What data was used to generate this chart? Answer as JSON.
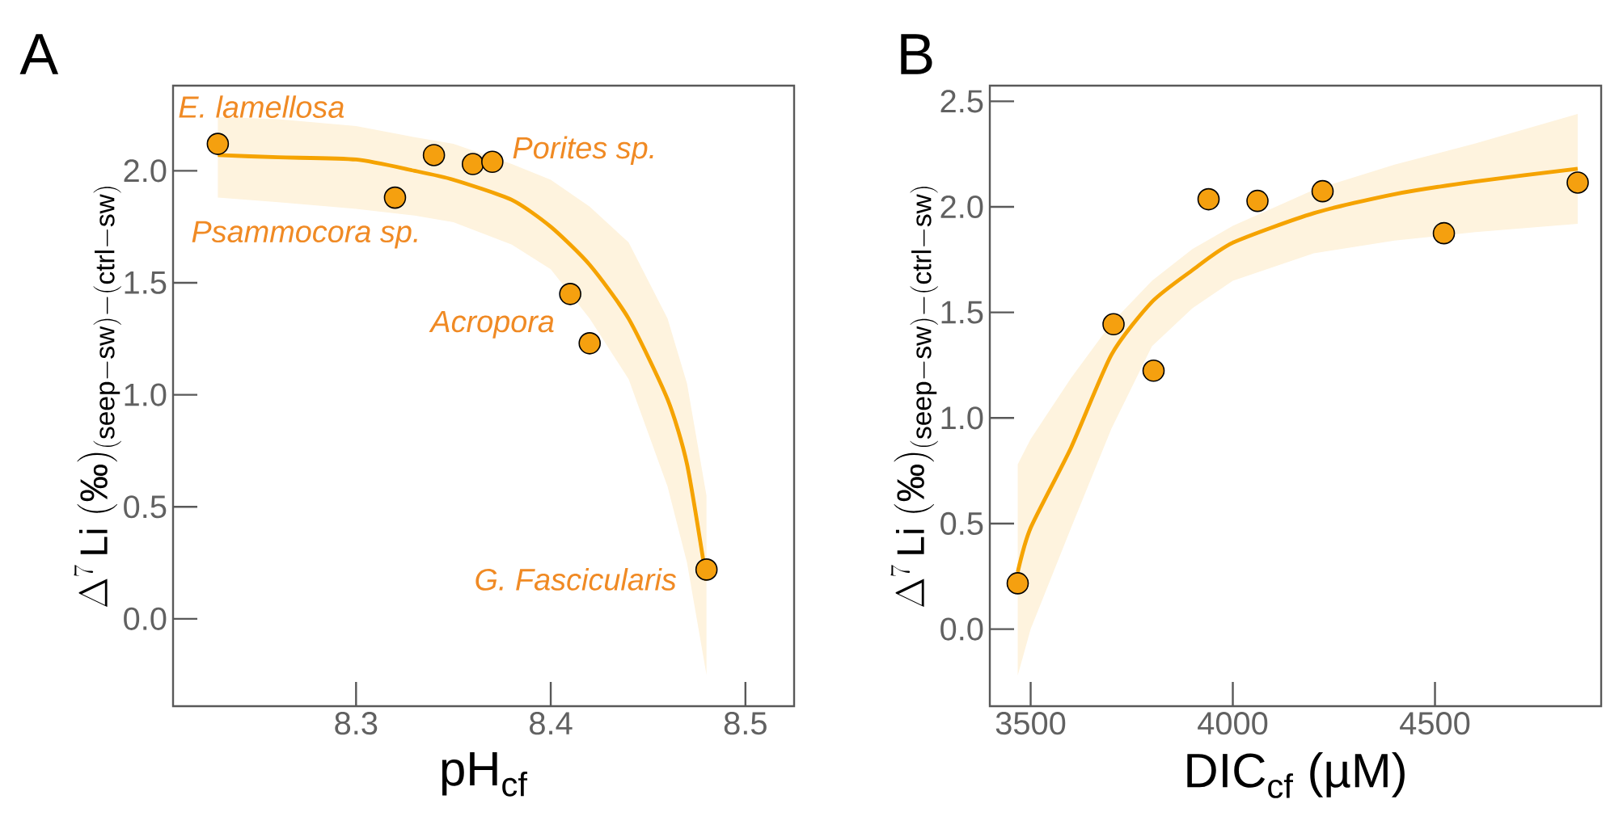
{
  "chart_data": [
    {
      "type": "scatter",
      "title": "A",
      "xlabel": "pH$_{cf}$",
      "ylabel": "\\Delta^{7}\\,\\mathrm{Li}\\ (\\mbox{‰})_{\\mathrm{(seep{-}sw){-}(ctrl{-}sw)}}",
      "xlim": [
        8.206,
        8.525
      ],
      "ylim": [
        -0.39,
        2.38
      ],
      "xticks": [
        8.3,
        8.4,
        8.5
      ],
      "yticks": [
        {
          "value": 0,
          "label": "0.0"
        },
        0.5,
        {
          "value": 1,
          "label": "1.0"
        },
        1.5,
        {
          "value": 2,
          "label": "2.0"
        }
      ],
      "series": [
        {
          "type": "line",
          "color": "#f5a300",
          "x": [
            8.229,
            8.26,
            8.3,
            8.33,
            8.35,
            8.38,
            8.4,
            8.42,
            8.44,
            8.46,
            8.47,
            8.48
          ],
          "values": [
            2.07,
            2.06,
            2.05,
            2.0,
            1.96,
            1.87,
            1.75,
            1.58,
            1.34,
            0.98,
            0.69,
            0.17
          ],
          "upper": [
            2.24,
            2.23,
            2.2,
            2.15,
            2.12,
            2.03,
            1.96,
            1.84,
            1.68,
            1.34,
            1.05,
            0.55
          ],
          "lower": [
            1.88,
            1.86,
            1.83,
            1.8,
            1.77,
            1.67,
            1.56,
            1.34,
            1.07,
            0.59,
            0.25,
            -0.25
          ]
        },
        {
          "color": "#f5a00f",
          "marker": "circle",
          "x": [
            8.229,
            8.32,
            8.34,
            8.36,
            8.37,
            8.41,
            8.42,
            8.48
          ],
          "values": [
            2.12,
            1.88,
            2.07,
            2.03,
            2.04,
            1.45,
            1.23,
            0.22
          ]
        }
      ],
      "annotations": [
        {
          "text": "E. lamellosa",
          "x": 8.229,
          "y": 2.12
        },
        {
          "text": "Porites sp.",
          "x": 8.37,
          "y": 2.04
        },
        {
          "text": "Psammocora sp.",
          "x": 8.32,
          "y": 1.88
        },
        {
          "text": "Acropora",
          "x": 8.41,
          "y": 1.45
        },
        {
          "text": "G. Fascicularis",
          "x": 8.48,
          "y": 0.22
        }
      ]
    },
    {
      "type": "scatter",
      "title": "B",
      "xlabel": "DIC$_{cf}$ (µM)",
      "ylabel": "\\Delta^{7}\\,\\mathrm{Li}\\ (\\mbox{‰})_{\\mathrm{(seep{-}sw){-}(ctrl{-}sw)}}",
      "xlim": [
        3399,
        4911
      ],
      "ylim": [
        -0.365,
        2.574
      ],
      "xticks": [
        3500,
        4000,
        4500
      ],
      "yticks": [
        {
          "value": 0,
          "label": "0.0"
        },
        0.5,
        {
          "value": 1,
          "label": "1.0"
        },
        1.5,
        {
          "value": 2,
          "label": "2.0"
        },
        2.5
      ],
      "series": [
        {
          "type": "line",
          "color": "#f5a300",
          "x": [
            3468,
            3500,
            3600,
            3700,
            3800,
            3900,
            4000,
            4200,
            4400,
            4600,
            4853
          ],
          "values": [
            0.27,
            0.48,
            0.86,
            1.3,
            1.55,
            1.7,
            1.83,
            1.97,
            2.06,
            2.12,
            2.18
          ],
          "upper": [
            0.78,
            0.9,
            1.19,
            1.45,
            1.65,
            1.8,
            1.91,
            2.08,
            2.2,
            2.3,
            2.44
          ],
          "lower": [
            -0.22,
            0.0,
            0.48,
            0.95,
            1.34,
            1.52,
            1.65,
            1.78,
            1.84,
            1.88,
            1.92
          ]
        },
        {
          "color": "#f5a00f",
          "marker": "circle",
          "x": [
            3468,
            3705,
            3804,
            3940,
            4061,
            4222,
            4522,
            4853
          ],
          "values": [
            0.217,
            1.444,
            1.224,
            2.036,
            2.028,
            2.074,
            1.875,
            2.115
          ]
        }
      ]
    }
  ]
}
